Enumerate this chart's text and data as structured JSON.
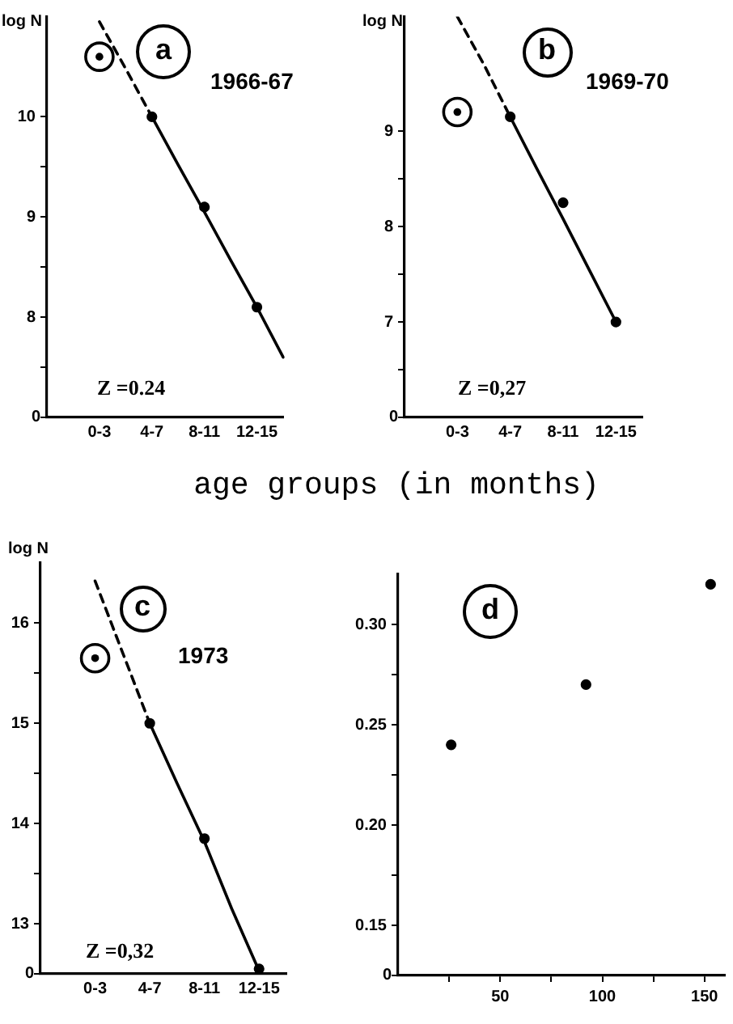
{
  "chart_data": [
    {
      "type": "scatter",
      "title": "a",
      "subtitle": "1966-67",
      "xlabel": "age groups (in months)",
      "ylabel": "log N",
      "annotations": [
        "Z =0.24",
        "0"
      ],
      "categories": [
        null,
        null,
        "0-3",
        null,
        "4-7",
        null,
        "8-11",
        null,
        "12-15",
        null
      ],
      "ylim": [
        7,
        11.0
      ],
      "yticks": [
        {
          "value": 7,
          "label": null
        },
        {
          "value": 7.5,
          "label": null
        },
        8,
        {
          "value": 8.5,
          "label": null
        },
        9,
        {
          "value": 9.5,
          "label": null
        },
        10
      ],
      "grid": false,
      "legend": false,
      "marker": "circle",
      "series": [
        {
          "type": "scatter",
          "color": "#000000",
          "values": [
            null,
            null,
            null,
            null,
            10.0,
            null,
            9.1,
            null,
            8.1,
            null
          ]
        },
        {
          "type": "scatter",
          "color": "#000000",
          "values": [
            null,
            null,
            10.6,
            null,
            null,
            null,
            null,
            null,
            null,
            null
          ]
        },
        {
          "type": "line",
          "color": "#000000",
          "line_style": "dashed",
          "marker": "none",
          "values": [
            null,
            null,
            10.95,
            10.48,
            10.0,
            null,
            null,
            null,
            null,
            null
          ]
        },
        {
          "type": "line",
          "color": "#000000",
          "line_style": "solid",
          "marker": "none",
          "values": [
            null,
            null,
            null,
            null,
            10.0,
            9.52,
            9.05,
            8.57,
            8.1,
            7.6
          ]
        }
      ]
    },
    {
      "type": "scatter",
      "title": "b",
      "subtitle": "1969-70",
      "ylabel": "log N",
      "annotations": [
        "Z =0,27",
        "0"
      ],
      "categories": [
        null,
        null,
        "0-3",
        null,
        "4-7",
        null,
        "8-11",
        null,
        "12-15",
        null
      ],
      "ylim": [
        6,
        10.2
      ],
      "yticks": [
        {
          "value": 6,
          "label": null
        },
        {
          "value": 6.5,
          "label": null
        },
        7,
        {
          "value": 7.5,
          "label": null
        },
        8,
        {
          "value": 8.5,
          "label": null
        },
        9
      ],
      "grid": false,
      "legend": false,
      "marker": "circle",
      "series": [
        {
          "type": "scatter",
          "color": "#000000",
          "values": [
            null,
            null,
            null,
            null,
            9.15,
            null,
            8.25,
            null,
            7.0,
            null
          ]
        },
        {
          "type": "scatter",
          "color": "#000000",
          "values": [
            null,
            null,
            9.2,
            null,
            null,
            null,
            null,
            null,
            null,
            null
          ]
        },
        {
          "type": "line",
          "color": "#000000",
          "line_style": "dashed",
          "marker": "none",
          "values": [
            null,
            null,
            10.2,
            9.7,
            9.15,
            null,
            null,
            null,
            null,
            null
          ]
        },
        {
          "type": "line",
          "color": "#000000",
          "line_style": "solid",
          "marker": "none",
          "values": [
            null,
            null,
            null,
            null,
            9.15,
            8.61,
            8.08,
            7.54,
            7.0,
            null
          ]
        }
      ]
    },
    {
      "type": "scatter",
      "title": "c",
      "subtitle": "1973",
      "ylabel": "log N",
      "annotations": [
        "Z =0,32",
        "0"
      ],
      "categories": [
        null,
        null,
        "0-3",
        null,
        "4-7",
        null,
        "8-11",
        null,
        "12-15",
        null
      ],
      "ylim": [
        12.5,
        16.6
      ],
      "yticks": [
        {
          "value": 12.5,
          "label": null
        },
        13,
        {
          "value": 13.5,
          "label": null
        },
        14,
        {
          "value": 14.5,
          "label": null
        },
        15,
        {
          "value": 15.5,
          "label": null
        },
        16
      ],
      "grid": false,
      "legend": false,
      "marker": "circle",
      "series": [
        {
          "type": "scatter",
          "color": "#000000",
          "values": [
            null,
            null,
            null,
            null,
            15.0,
            null,
            13.85,
            null,
            12.55,
            null
          ]
        },
        {
          "type": "scatter",
          "color": "#000000",
          "values": [
            null,
            null,
            15.65,
            null,
            null,
            null,
            null,
            null,
            null,
            null
          ]
        },
        {
          "type": "line",
          "color": "#000000",
          "line_style": "dashed",
          "marker": "none",
          "values": [
            null,
            null,
            16.42,
            15.71,
            15.0,
            null,
            null,
            null,
            null,
            null
          ]
        },
        {
          "type": "line",
          "color": "#000000",
          "line_style": "solid",
          "marker": "none",
          "values": [
            null,
            null,
            null,
            null,
            15.0,
            14.4,
            13.82,
            13.15,
            12.53,
            null
          ]
        }
      ]
    },
    {
      "type": "scatter",
      "title": "d",
      "annotations": [
        "0"
      ],
      "xlim": [
        0,
        160
      ],
      "xticks": [
        {
          "value": 25,
          "label": null
        },
        50,
        {
          "value": 75,
          "label": null
        },
        100,
        {
          "value": 125,
          "label": null
        },
        150
      ],
      "ylim": [
        0.125,
        0.325
      ],
      "yticks": [
        {
          "value": 0.125,
          "label": null
        },
        {
          "value": 0.15,
          "label": "0.15"
        },
        {
          "value": 0.175,
          "label": null
        },
        {
          "value": 0.2,
          "label": "0.20"
        },
        {
          "value": 0.225,
          "label": null
        },
        {
          "value": 0.25,
          "label": "0.25"
        },
        {
          "value": 0.275,
          "label": null
        },
        {
          "value": 0.3,
          "label": "0.30"
        }
      ],
      "grid": false,
      "legend": false,
      "marker": "circle",
      "series": [
        {
          "type": "scatter",
          "color": "#000000",
          "x": [
            26,
            92,
            153
          ],
          "values": [
            0.24,
            0.27,
            0.32
          ]
        }
      ]
    }
  ]
}
